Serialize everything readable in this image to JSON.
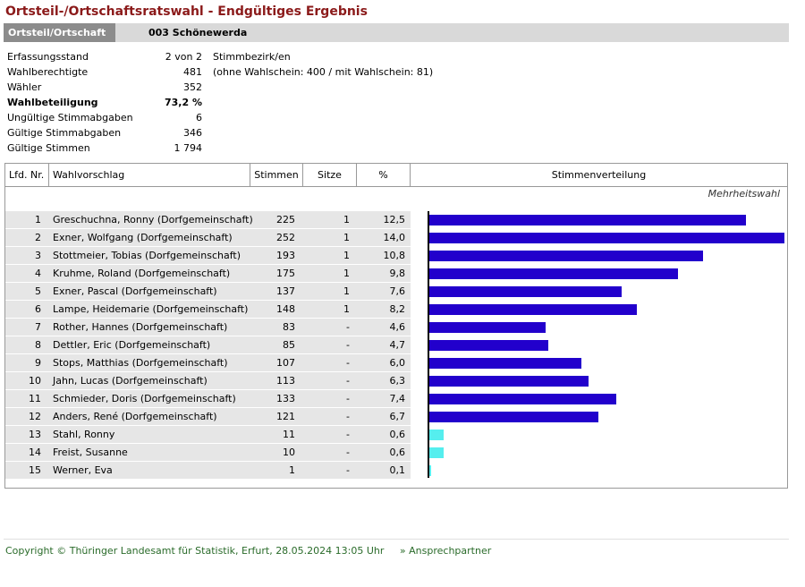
{
  "title": "Ortsteil-/Ortschaftsratswahl - Endgültiges Ergebnis",
  "header": {
    "tag": "Ortsteil/Ortschaft",
    "code": "003  Schönewerda"
  },
  "stats": [
    {
      "label": "Erfassungsstand",
      "value": "2 von 2",
      "extra": "Stimmbezirk/en",
      "bold": false
    },
    {
      "label": "Wahlberechtigte",
      "value": "481",
      "extra": "(ohne Wahlschein: 400 / mit Wahlschein: 81)",
      "bold": false
    },
    {
      "label": "Wähler",
      "value": "352",
      "extra": "",
      "bold": false
    },
    {
      "label": "Wahlbeteiligung",
      "value": "73,2 %",
      "extra": "",
      "bold": true
    },
    {
      "label": "Ungültige Stimmabgaben",
      "value": "6",
      "extra": "",
      "bold": false
    },
    {
      "label": "Gültige Stimmabgaben",
      "value": "346",
      "extra": "",
      "bold": false
    },
    {
      "label": "Gültige Stimmen",
      "value": "1 794",
      "extra": "",
      "bold": false
    }
  ],
  "table": {
    "headers": {
      "nr": "Lfd. Nr.",
      "name": "Wahlvorschlag",
      "votes": "Stimmen",
      "seats": "Sitze",
      "pct": "%",
      "dist": "Stimmenverteilung"
    },
    "note": "Mehrheitswahl",
    "colors": {
      "seat": "#2200cc",
      "noseat_party": "#2200cc",
      "independent": "#55eeee"
    },
    "rows": [
      {
        "nr": "1",
        "name": "Greschuchna, Ronny (Dorfgemeinschaft)",
        "votes": "225",
        "seats": "1",
        "pct": "12,5",
        "share": 12.5,
        "color": "#2200cc"
      },
      {
        "nr": "2",
        "name": "Exner, Wolfgang (Dorfgemeinschaft)",
        "votes": "252",
        "seats": "1",
        "pct": "14,0",
        "share": 14.0,
        "color": "#2200cc"
      },
      {
        "nr": "3",
        "name": "Stottmeier, Tobias (Dorfgemeinschaft)",
        "votes": "193",
        "seats": "1",
        "pct": "10,8",
        "share": 10.8,
        "color": "#2200cc"
      },
      {
        "nr": "4",
        "name": "Kruhme, Roland (Dorfgemeinschaft)",
        "votes": "175",
        "seats": "1",
        "pct": "9,8",
        "share": 9.8,
        "color": "#2200cc"
      },
      {
        "nr": "5",
        "name": "Exner, Pascal (Dorfgemeinschaft)",
        "votes": "137",
        "seats": "1",
        "pct": "7,6",
        "share": 7.6,
        "color": "#2200cc"
      },
      {
        "nr": "6",
        "name": "Lampe, Heidemarie (Dorfgemeinschaft)",
        "votes": "148",
        "seats": "1",
        "pct": "8,2",
        "share": 8.2,
        "color": "#2200cc"
      },
      {
        "nr": "7",
        "name": "Rother, Hannes (Dorfgemeinschaft)",
        "votes": "83",
        "seats": "-",
        "pct": "4,6",
        "share": 4.6,
        "color": "#2200cc"
      },
      {
        "nr": "8",
        "name": "Dettler, Eric (Dorfgemeinschaft)",
        "votes": "85",
        "seats": "-",
        "pct": "4,7",
        "share": 4.7,
        "color": "#2200cc"
      },
      {
        "nr": "9",
        "name": "Stops, Matthias (Dorfgemeinschaft)",
        "votes": "107",
        "seats": "-",
        "pct": "6,0",
        "share": 6.0,
        "color": "#2200cc"
      },
      {
        "nr": "10",
        "name": "Jahn, Lucas (Dorfgemeinschaft)",
        "votes": "113",
        "seats": "-",
        "pct": "6,3",
        "share": 6.3,
        "color": "#2200cc"
      },
      {
        "nr": "11",
        "name": "Schmieder, Doris (Dorfgemeinschaft)",
        "votes": "133",
        "seats": "-",
        "pct": "7,4",
        "share": 7.4,
        "color": "#2200cc"
      },
      {
        "nr": "12",
        "name": "Anders, René (Dorfgemeinschaft)",
        "votes": "121",
        "seats": "-",
        "pct": "6,7",
        "share": 6.7,
        "color": "#2200cc"
      },
      {
        "nr": "13",
        "name": "Stahl, Ronny",
        "votes": "11",
        "seats": "-",
        "pct": "0,6",
        "share": 0.6,
        "color": "#55eeee"
      },
      {
        "nr": "14",
        "name": "Freist, Susanne",
        "votes": "10",
        "seats": "-",
        "pct": "0,6",
        "share": 0.6,
        "color": "#55eeee"
      },
      {
        "nr": "15",
        "name": "Werner, Eva",
        "votes": "1",
        "seats": "-",
        "pct": "0,1",
        "share": 0.1,
        "color": "#55eeee"
      }
    ]
  },
  "footer": {
    "copyright": "Copyright © Thüringer Landesamt für Statistik, Erfurt, 28.05.2024 13:05 Uhr",
    "link": "» Ansprechpartner"
  }
}
